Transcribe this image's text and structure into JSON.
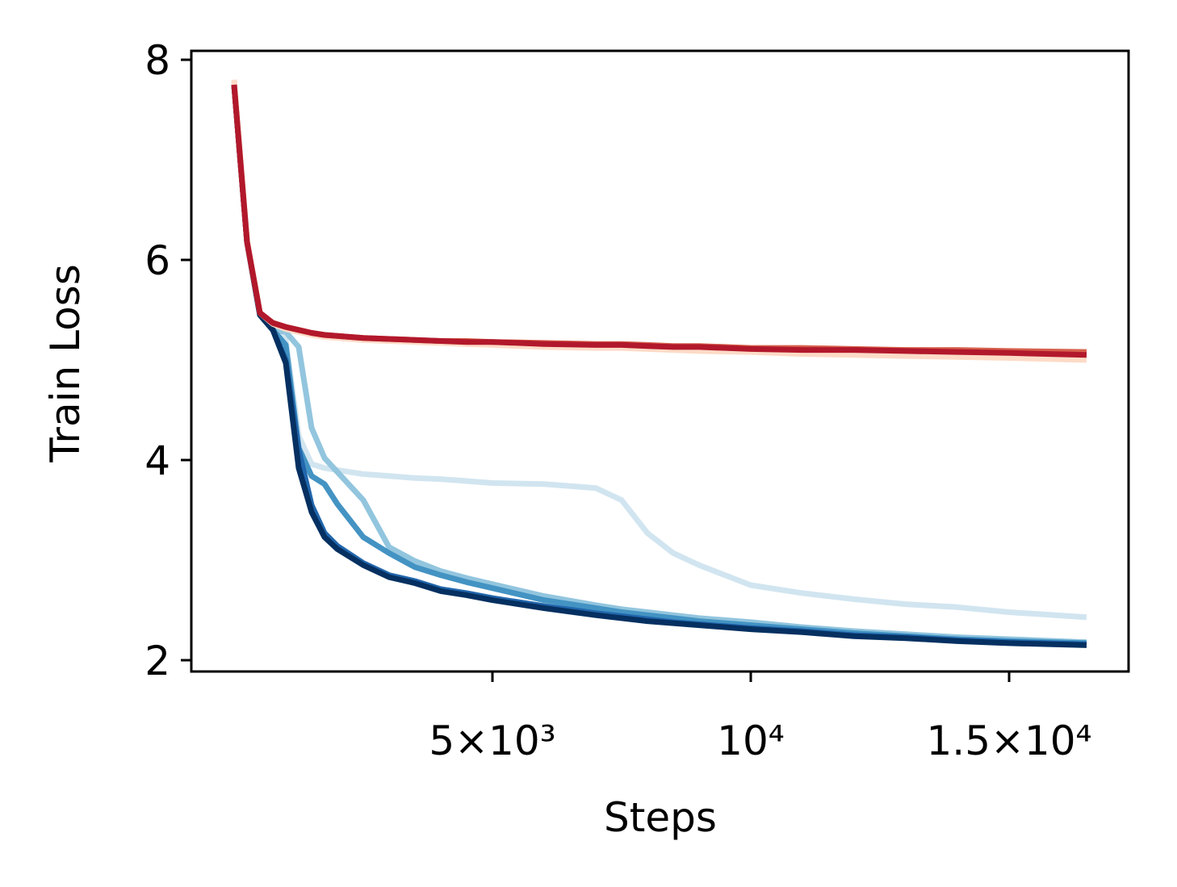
{
  "chart_data": {
    "type": "line",
    "x_label": "Steps",
    "y_label": "Train Loss",
    "x": [
      0,
      250,
      500,
      750,
      1000,
      1250,
      1500,
      1750,
      2000,
      2500,
      3000,
      3500,
      4000,
      4500,
      5000,
      6000,
      7000,
      7500,
      8000,
      8500,
      9000,
      10000,
      11000,
      12000,
      13000,
      14000,
      15000,
      16500
    ],
    "xlim": [
      -828,
      17312
    ],
    "ylim": [
      1.887,
      8.089
    ],
    "xticks": [
      {
        "value": 5000,
        "label": "5×10³"
      },
      {
        "value": 10000,
        "label": "10⁴"
      },
      {
        "value": 15000,
        "label": "1.5×10⁴"
      }
    ],
    "yticks": [
      2,
      4,
      6,
      8
    ],
    "grid": false,
    "series": [
      {
        "color": "#d1e5f0",
        "values": [
          7.8,
          6.2,
          5.45,
          5.3,
          5.2,
          4.24,
          3.96,
          3.92,
          3.9,
          3.86,
          3.84,
          3.82,
          3.81,
          3.79,
          3.77,
          3.76,
          3.72,
          3.6,
          3.27,
          3.07,
          2.95,
          2.75,
          2.67,
          2.61,
          2.56,
          2.53,
          2.48,
          2.43
        ]
      },
      {
        "color": "#92c5de",
        "values": [
          7.75,
          6.18,
          5.45,
          5.3,
          5.28,
          5.13,
          4.32,
          4.02,
          3.88,
          3.6,
          3.13,
          2.99,
          2.89,
          2.82,
          2.76,
          2.64,
          2.55,
          2.51,
          2.48,
          2.45,
          2.42,
          2.38,
          2.33,
          2.29,
          2.26,
          2.23,
          2.21,
          2.18
        ]
      },
      {
        "color": "#4393c3",
        "values": [
          7.75,
          6.18,
          5.45,
          5.3,
          5.15,
          4.12,
          3.84,
          3.76,
          3.56,
          3.23,
          3.07,
          2.93,
          2.85,
          2.78,
          2.72,
          2.6,
          2.52,
          2.48,
          2.45,
          2.42,
          2.39,
          2.35,
          2.31,
          2.27,
          2.24,
          2.21,
          2.19,
          2.17
        ]
      },
      {
        "color": "#2166ac",
        "values": [
          7.75,
          6.18,
          5.45,
          5.3,
          5.0,
          4.1,
          3.55,
          3.27,
          3.14,
          2.97,
          2.85,
          2.79,
          2.71,
          2.67,
          2.62,
          2.54,
          2.47,
          2.44,
          2.41,
          2.38,
          2.36,
          2.32,
          2.29,
          2.25,
          2.23,
          2.2,
          2.18,
          2.16
        ]
      },
      {
        "color": "#053061",
        "values": [
          7.75,
          6.18,
          5.45,
          5.3,
          4.97,
          3.92,
          3.48,
          3.23,
          3.11,
          2.95,
          2.83,
          2.77,
          2.69,
          2.65,
          2.6,
          2.52,
          2.45,
          2.42,
          2.39,
          2.37,
          2.35,
          2.31,
          2.28,
          2.24,
          2.22,
          2.19,
          2.17,
          2.15
        ]
      },
      {
        "color": "#fddbc7",
        "values": [
          7.8,
          6.2,
          5.47,
          5.36,
          5.31,
          5.28,
          5.25,
          5.23,
          5.22,
          5.2,
          5.19,
          5.18,
          5.17,
          5.16,
          5.15,
          5.13,
          5.12,
          5.12,
          5.11,
          5.1,
          5.09,
          5.08,
          5.06,
          5.05,
          5.04,
          5.03,
          5.02,
          5.0
        ]
      },
      {
        "color": "#d6604d",
        "values": [
          7.75,
          6.18,
          5.47,
          5.37,
          5.33,
          5.3,
          5.27,
          5.25,
          5.24,
          5.22,
          5.21,
          5.2,
          5.19,
          5.19,
          5.18,
          5.17,
          5.16,
          5.16,
          5.15,
          5.14,
          5.14,
          5.12,
          5.12,
          5.11,
          5.1,
          5.1,
          5.09,
          5.08
        ]
      },
      {
        "color": "#b2182b",
        "values": [
          7.75,
          6.18,
          5.47,
          5.37,
          5.33,
          5.3,
          5.27,
          5.25,
          5.24,
          5.22,
          5.21,
          5.2,
          5.19,
          5.18,
          5.18,
          5.16,
          5.15,
          5.15,
          5.14,
          5.13,
          5.13,
          5.11,
          5.1,
          5.1,
          5.09,
          5.08,
          5.07,
          5.05
        ]
      }
    ]
  }
}
